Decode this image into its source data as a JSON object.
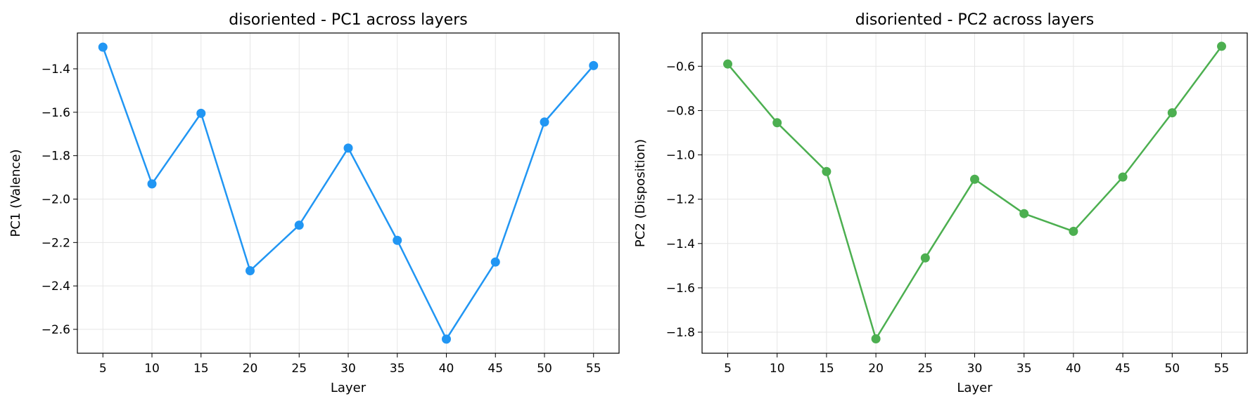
{
  "chart_data": [
    {
      "type": "line",
      "title": "disoriented - PC1 across layers",
      "xlabel": "Layer",
      "ylabel": "PC1 (Valence)",
      "xlim": [
        2.4,
        57.6
      ],
      "ylim": [
        -2.71,
        -1.235
      ],
      "xticks": [
        5,
        10,
        15,
        20,
        25,
        30,
        35,
        40,
        45,
        50,
        55
      ],
      "xtick_labels": [
        "5",
        "10",
        "15",
        "20",
        "25",
        "30",
        "35",
        "40",
        "45",
        "50",
        "55"
      ],
      "yticks": [
        -2.6,
        -2.4,
        -2.2,
        -2.0,
        -1.8,
        -1.6,
        -1.4
      ],
      "ytick_labels": [
        "−2.6",
        "−2.4",
        "−2.2",
        "−2.0",
        "−1.8",
        "−1.6",
        "−1.4"
      ],
      "grid": true,
      "color": "#2196F3",
      "series": [
        {
          "x": [
            5,
            10,
            15,
            20,
            25,
            30,
            35,
            40,
            45,
            50,
            55
          ],
          "values": [
            -1.3,
            -1.93,
            -1.605,
            -2.33,
            -2.12,
            -1.765,
            -2.19,
            -2.645,
            -2.29,
            -1.645,
            -1.385
          ]
        }
      ]
    },
    {
      "type": "line",
      "title": "disoriented - PC2 across layers",
      "xlabel": "Layer",
      "ylabel": "PC2 (Disposition)",
      "xlim": [
        2.4,
        57.6
      ],
      "ylim": [
        -1.895,
        -0.45
      ],
      "xticks": [
        5,
        10,
        15,
        20,
        25,
        30,
        35,
        40,
        45,
        50,
        55
      ],
      "xtick_labels": [
        "5",
        "10",
        "15",
        "20",
        "25",
        "30",
        "35",
        "40",
        "45",
        "50",
        "55"
      ],
      "yticks": [
        -1.8,
        -1.6,
        -1.4,
        -1.2,
        -1.0,
        -0.8,
        -0.6
      ],
      "ytick_labels": [
        "−1.8",
        "−1.6",
        "−1.4",
        "−1.2",
        "−1.0",
        "−0.8",
        "−0.6"
      ],
      "grid": true,
      "color": "#4CAF50",
      "series": [
        {
          "x": [
            5,
            10,
            15,
            20,
            25,
            30,
            35,
            40,
            45,
            50,
            55
          ],
          "values": [
            -0.59,
            -0.855,
            -1.075,
            -1.83,
            -1.465,
            -1.11,
            -1.265,
            -1.345,
            -1.1,
            -0.81,
            -0.51
          ]
        }
      ]
    }
  ]
}
